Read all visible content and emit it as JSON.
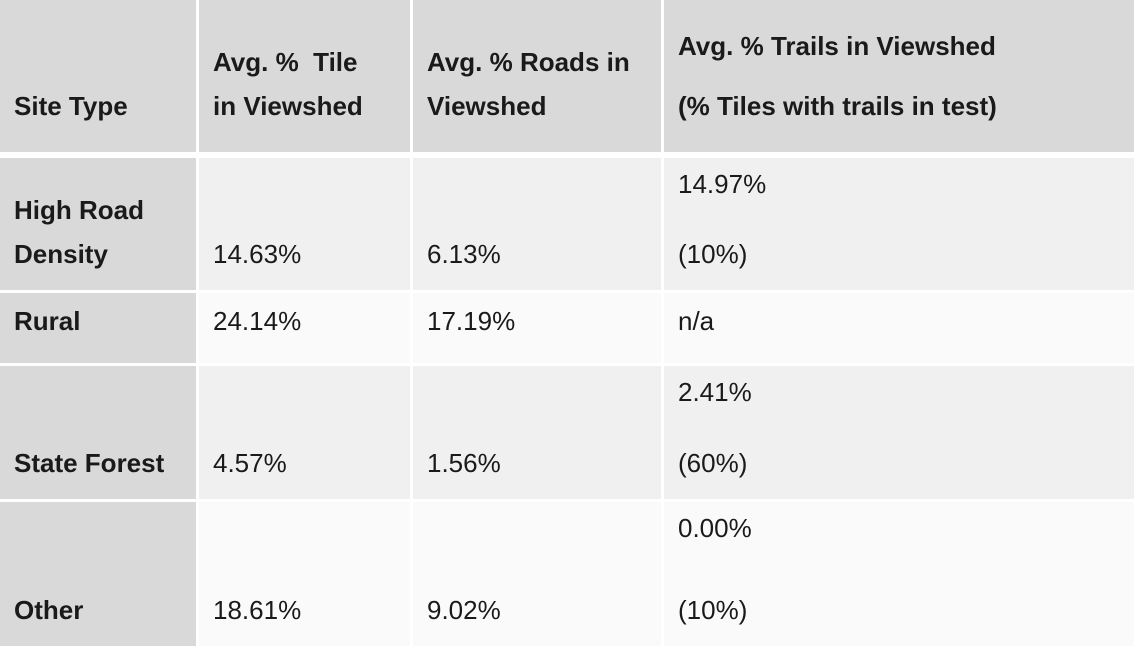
{
  "table": {
    "headers": {
      "site_type": "Site Type",
      "tile_line1": "Avg. %  Tile",
      "tile_line2": "in Viewshed",
      "roads_line1": "Avg. % Roads in",
      "roads_line2": "Viewshed",
      "trails_line1": "Avg. % Trails in Viewshed",
      "trails_line2": "(% Tiles with trails in test)"
    },
    "rows": [
      {
        "site_line1": "High Road",
        "site_line2": "Density",
        "tile": "14.63%",
        "roads": "6.13%",
        "trails_pct": "14.97%",
        "trails_tiles": "(10%)"
      },
      {
        "site_line1": "Rural",
        "site_line2": "",
        "tile": "24.14%",
        "roads": "17.19%",
        "trails_pct": "n/a",
        "trails_tiles": ""
      },
      {
        "site_line1": "State Forest",
        "site_line2": "",
        "tile": "4.57%",
        "roads": "1.56%",
        "trails_pct": "2.41%",
        "trails_tiles": "(60%)"
      },
      {
        "site_line1": "Other",
        "site_line2": "",
        "tile": "18.61%",
        "roads": "9.02%",
        "trails_pct": "0.00%",
        "trails_tiles": "(10%)"
      }
    ]
  }
}
